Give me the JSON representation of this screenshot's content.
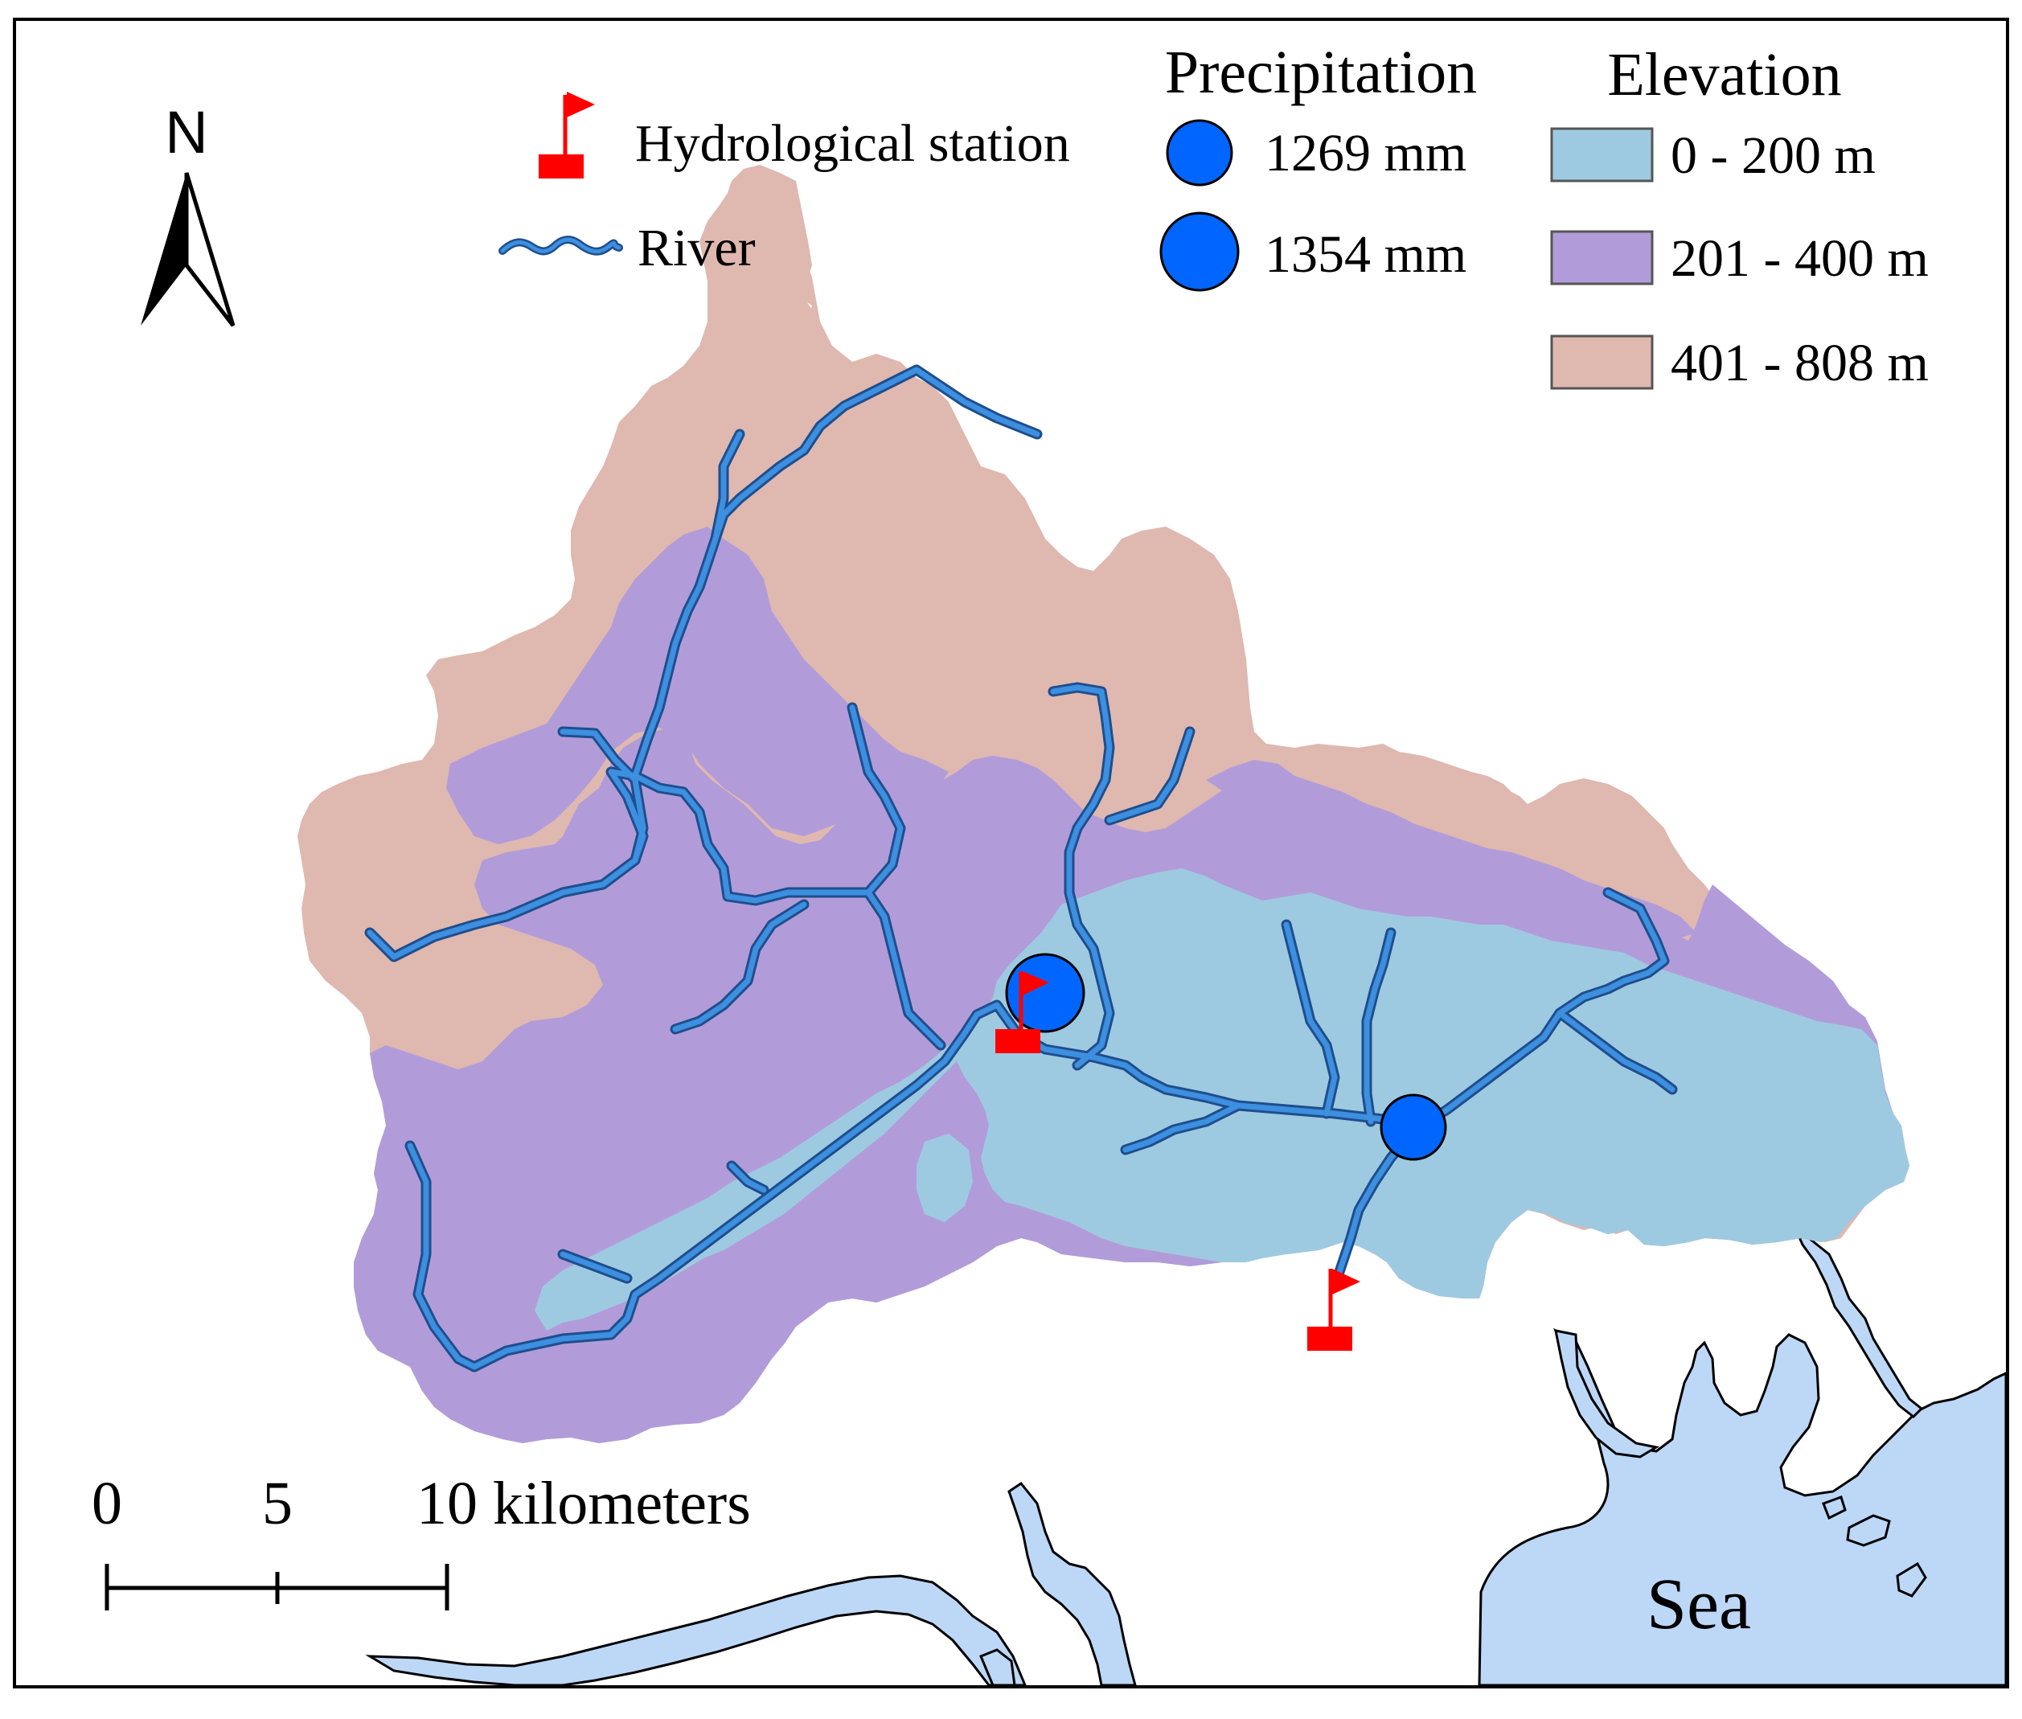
{
  "legend": {
    "station_label": "Hydrological station",
    "river_label": "River",
    "precipitation": {
      "title": "Precipitation",
      "items": [
        {
          "label": "1269 mm",
          "value_mm": 1269
        },
        {
          "label": "1354 mm",
          "value_mm": 1354
        }
      ]
    },
    "elevation": {
      "title": "Elevation",
      "classes": [
        {
          "label": "0 - 200 m",
          "color": "#9ecae1"
        },
        {
          "label": "201 - 400 m",
          "color": "#b19cd9"
        },
        {
          "label": "401 - 808 m",
          "color": "#dfb8b0"
        }
      ]
    }
  },
  "north_arrow": {
    "letter": "N"
  },
  "scale_bar": {
    "ticks": [
      "0",
      "5",
      "10 kilometers"
    ],
    "unit": "kilometers"
  },
  "sea_label": "Sea",
  "colors": {
    "sea": "#bdd7f7",
    "river": "#3d8fe0",
    "river_casing": "#1f4e8c",
    "station": "#ff0000",
    "precip_marker": "#0066ff",
    "frame": "#000000"
  },
  "icons": {
    "station": "red-flag-icon",
    "river": "wavy-line-icon",
    "north": "north-arrow-icon",
    "precip": "blue-circle-icon"
  }
}
